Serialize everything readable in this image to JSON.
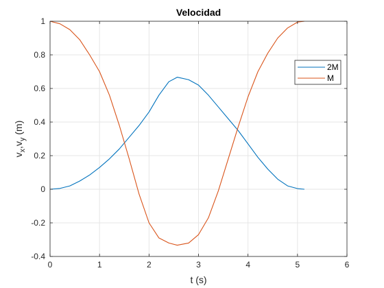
{
  "chart_data": {
    "type": "line",
    "title": "Velocidad",
    "xlabel": "t (s)",
    "ylabel_parts": {
      "v1": "v",
      "s1": "x",
      "sep": ",v",
      "s2": "y",
      "rest": " (m)"
    },
    "xlim": [
      0,
      6
    ],
    "ylim": [
      -0.4,
      1
    ],
    "xticks": [
      0,
      1,
      2,
      3,
      4,
      5,
      6
    ],
    "yticks": [
      -0.4,
      -0.2,
      0,
      0.2,
      0.4,
      0.6,
      0.8,
      1
    ],
    "xtick_labels": [
      "0",
      "1",
      "2",
      "3",
      "4",
      "5",
      "6"
    ],
    "ytick_labels": [
      "-0.4",
      "-0.2",
      "0",
      "0.2",
      "0.4",
      "0.6",
      "0.8",
      "1"
    ],
    "grid": true,
    "legend_position": "top-right",
    "series": [
      {
        "name": "2M",
        "color": "#0072BD",
        "x": [
          0,
          0.2,
          0.4,
          0.6,
          0.8,
          1.0,
          1.2,
          1.4,
          1.6,
          1.8,
          2.0,
          2.2,
          2.4,
          2.57,
          2.8,
          3.0,
          3.2,
          3.4,
          3.6,
          3.8,
          4.0,
          4.2,
          4.4,
          4.6,
          4.8,
          5.0,
          5.14
        ],
        "y": [
          0,
          0.005,
          0.02,
          0.049,
          0.085,
          0.13,
          0.181,
          0.24,
          0.31,
          0.38,
          0.46,
          0.56,
          0.64,
          0.667,
          0.652,
          0.62,
          0.56,
          0.49,
          0.42,
          0.35,
          0.27,
          0.19,
          0.12,
          0.06,
          0.02,
          0.004,
          0
        ]
      },
      {
        "name": "M",
        "color": "#D95319",
        "x": [
          0,
          0.2,
          0.4,
          0.6,
          0.8,
          1.0,
          1.2,
          1.4,
          1.6,
          1.8,
          2.0,
          2.2,
          2.4,
          2.57,
          2.8,
          3.0,
          3.2,
          3.4,
          3.6,
          3.8,
          4.0,
          4.2,
          4.4,
          4.6,
          4.8,
          5.0,
          5.14
        ],
        "y": [
          1,
          0.985,
          0.95,
          0.89,
          0.8,
          0.7,
          0.56,
          0.38,
          0.18,
          -0.03,
          -0.2,
          -0.29,
          -0.32,
          -0.333,
          -0.32,
          -0.27,
          -0.17,
          -0.01,
          0.18,
          0.37,
          0.55,
          0.7,
          0.81,
          0.9,
          0.96,
          0.995,
          1
        ]
      }
    ]
  }
}
